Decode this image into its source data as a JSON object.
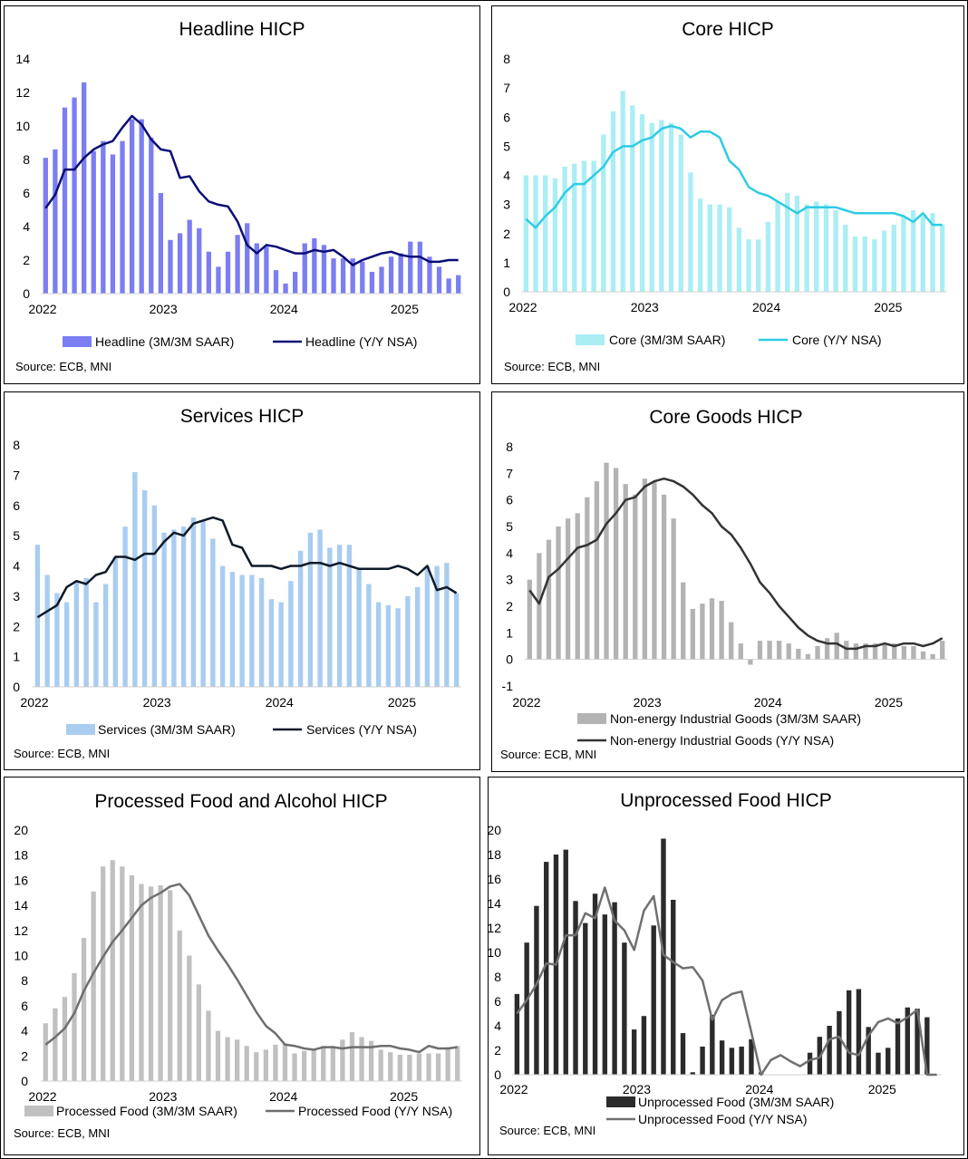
{
  "chart_data": [
    {
      "id": "headline",
      "type": "bar+line",
      "title": "Headline HICP",
      "bar_color": "#7b7ef0",
      "line_color": "#0a0d78",
      "ylim": [
        0,
        14
      ],
      "yticks": [
        0,
        2,
        4,
        6,
        8,
        10,
        12,
        14
      ],
      "ytick_labels": [
        "0",
        "2",
        "4",
        "6",
        "8",
        "10",
        "12",
        "14"
      ],
      "x_range": [
        2022.0,
        2025.5
      ],
      "xticks": [
        2022,
        2023,
        2024,
        2025
      ],
      "xtick_labels": [
        "2022",
        "2023",
        "2024",
        "2025"
      ],
      "bar_series_name": "Headline (3M/3M SAAR)",
      "line_series_name": "Headline (Y/Y NSA)",
      "bars": [
        8.1,
        8.6,
        11.1,
        11.7,
        12.6,
        8.5,
        9.1,
        8.3,
        9.1,
        10.4,
        10.4,
        9.3,
        6.0,
        3.2,
        3.6,
        4.4,
        3.9,
        2.5,
        1.6,
        2.5,
        3.5,
        4.2,
        3.0,
        2.8,
        1.4,
        0.6,
        1.3,
        3.0,
        3.3,
        2.9,
        2.1,
        2.1,
        2.1,
        1.9,
        1.3,
        1.6,
        2.2,
        2.4,
        3.1,
        3.1,
        2.2,
        1.6,
        0.9,
        1.1
      ],
      "line": [
        5.1,
        5.9,
        7.4,
        7.4,
        8.1,
        8.6,
        8.9,
        9.1,
        9.9,
        10.6,
        10.1,
        9.2,
        8.6,
        8.5,
        6.9,
        7.0,
        6.1,
        5.5,
        5.3,
        5.2,
        4.3,
        2.9,
        2.4,
        2.9,
        2.8,
        2.6,
        2.4,
        2.4,
        2.6,
        2.5,
        2.6,
        2.2,
        1.7,
        2.0,
        2.2,
        2.4,
        2.5,
        2.3,
        2.2,
        2.2,
        1.9,
        1.9,
        2.0,
        2.0
      ],
      "source": "Source: ECB, MNI"
    },
    {
      "id": "core",
      "type": "bar+line",
      "title": "Core HICP",
      "bar_color": "#aaeef4",
      "line_color": "#2ecbe6",
      "ylim": [
        0,
        8
      ],
      "yticks": [
        0,
        1,
        2,
        3,
        4,
        5,
        6,
        7,
        8
      ],
      "ytick_labels": [
        "0",
        "1",
        "2",
        "3",
        "4",
        "5",
        "6",
        "7",
        "8"
      ],
      "x_range": [
        2022.0,
        2025.5
      ],
      "xticks": [
        2022,
        2023,
        2024,
        2025
      ],
      "xtick_labels": [
        "2022",
        "2023",
        "2024",
        "2025"
      ],
      "bar_series_name": "Core (3M/3M SAAR)",
      "line_series_name": "Core (Y/Y NSA)",
      "bars": [
        4.0,
        4.0,
        4.0,
        3.9,
        4.3,
        4.4,
        4.5,
        4.5,
        5.4,
        6.2,
        6.9,
        6.4,
        6.1,
        5.8,
        5.9,
        5.8,
        5.4,
        4.1,
        3.2,
        3.0,
        3.0,
        2.9,
        2.2,
        1.8,
        1.8,
        2.4,
        3.1,
        3.4,
        3.3,
        3.0,
        3.1,
        3.0,
        2.8,
        2.3,
        1.9,
        1.9,
        1.8,
        2.1,
        2.3,
        2.6,
        2.8,
        2.6,
        2.7,
        2.3
      ],
      "line": [
        2.5,
        2.2,
        2.6,
        2.9,
        3.4,
        3.7,
        3.7,
        4.0,
        4.3,
        4.8,
        5.0,
        5.0,
        5.2,
        5.3,
        5.6,
        5.7,
        5.6,
        5.3,
        5.5,
        5.5,
        5.3,
        4.5,
        4.2,
        3.6,
        3.4,
        3.3,
        3.1,
        2.9,
        2.7,
        2.9,
        2.9,
        2.9,
        2.9,
        2.8,
        2.7,
        2.7,
        2.7,
        2.7,
        2.7,
        2.6,
        2.4,
        2.7,
        2.3,
        2.3
      ],
      "source": "Source: ECB, MNI"
    },
    {
      "id": "services",
      "type": "bar+line",
      "title": "Services HICP",
      "bar_color": "#a9cdf0",
      "line_color": "#0e1a2a",
      "ylim": [
        0,
        8
      ],
      "yticks": [
        0,
        1,
        2,
        3,
        4,
        5,
        6,
        7,
        8
      ],
      "ytick_labels": [
        "0",
        "1",
        "2",
        "3",
        "4",
        "5",
        "6",
        "7",
        "8"
      ],
      "x_range": [
        2022.0,
        2025.5
      ],
      "xticks": [
        2022,
        2023,
        2024,
        2025
      ],
      "xtick_labels": [
        "2022",
        "2023",
        "2024",
        "2025"
      ],
      "bar_series_name": "Services (3M/3M SAAR)",
      "line_series_name": "Services (Y/Y NSA)",
      "bars": [
        4.7,
        3.7,
        3.1,
        2.8,
        3.5,
        3.6,
        2.8,
        3.4,
        4.3,
        5.3,
        7.1,
        6.5,
        6.0,
        5.1,
        5.2,
        5.3,
        5.6,
        5.5,
        4.9,
        4.0,
        3.8,
        3.7,
        3.7,
        3.6,
        2.9,
        2.8,
        3.5,
        4.5,
        5.1,
        5.2,
        4.6,
        4.7,
        4.7,
        3.9,
        3.4,
        2.8,
        2.7,
        2.6,
        3.0,
        3.3,
        4.0,
        4.0,
        4.1,
        3.1
      ],
      "line": [
        2.3,
        2.5,
        2.7,
        3.3,
        3.5,
        3.4,
        3.7,
        3.8,
        4.3,
        4.3,
        4.2,
        4.4,
        4.4,
        4.8,
        5.1,
        5.0,
        5.4,
        5.5,
        5.6,
        5.5,
        4.7,
        4.6,
        4.0,
        4.0,
        4.0,
        3.9,
        4.0,
        4.0,
        4.1,
        4.1,
        4.0,
        4.1,
        4.0,
        3.9,
        3.9,
        3.9,
        3.9,
        4.0,
        3.9,
        3.7,
        4.0,
        3.2,
        3.3,
        3.1
      ],
      "source": "Source: ECB, MNI"
    },
    {
      "id": "coregoods",
      "type": "bar+line",
      "title": "Core Goods HICP",
      "bar_color": "#b3b3b3",
      "line_color": "#333333",
      "ylim": [
        -1,
        8
      ],
      "yticks": [
        -1,
        0,
        1,
        2,
        3,
        4,
        5,
        6,
        7,
        8
      ],
      "ytick_labels": [
        "-1",
        "0",
        "1",
        "2",
        "3",
        "4",
        "5",
        "6",
        "7",
        "8"
      ],
      "x_range": [
        2022.0,
        2025.5
      ],
      "xticks": [
        2022,
        2023,
        2024,
        2025
      ],
      "xtick_labels": [
        "2022",
        "2023",
        "2024",
        "2025"
      ],
      "bar_series_name": "Non-energy Industrial Goods (3M/3M SAAR)",
      "line_series_name": "Non-energy Industrial Goods (Y/Y NSA)",
      "bars": [
        3.0,
        4.0,
        4.5,
        5.0,
        5.3,
        5.5,
        6.1,
        6.7,
        7.4,
        7.2,
        6.6,
        6.2,
        6.8,
        6.7,
        6.2,
        5.3,
        2.9,
        1.9,
        2.1,
        2.3,
        2.2,
        1.4,
        0.6,
        -0.2,
        0.7,
        0.7,
        0.7,
        0.6,
        0.4,
        0.2,
        0.5,
        0.8,
        1.0,
        0.7,
        0.6,
        0.6,
        0.6,
        0.6,
        0.6,
        0.5,
        0.5,
        0.3,
        0.2,
        0.7
      ],
      "line": [
        2.6,
        2.1,
        3.1,
        3.4,
        3.8,
        4.2,
        4.3,
        4.5,
        5.1,
        5.5,
        6.0,
        6.1,
        6.5,
        6.7,
        6.8,
        6.7,
        6.5,
        6.2,
        5.8,
        5.5,
        5.0,
        4.7,
        4.2,
        3.6,
        2.9,
        2.5,
        2.0,
        1.6,
        1.2,
        0.9,
        0.7,
        0.6,
        0.6,
        0.4,
        0.4,
        0.5,
        0.5,
        0.6,
        0.5,
        0.6,
        0.6,
        0.5,
        0.6,
        0.8
      ],
      "source": "Source: ECB, MNI"
    },
    {
      "id": "processed",
      "type": "bar+line",
      "title": "Processed Food and Alcohol HICP",
      "bar_color": "#c0c0c0",
      "line_color": "#6e6e6e",
      "ylim": [
        0,
        20
      ],
      "yticks": [
        0,
        2,
        4,
        6,
        8,
        10,
        12,
        14,
        16,
        18,
        20
      ],
      "ytick_labels": [
        "0",
        "2",
        "4",
        "6",
        "8",
        "10",
        "12",
        "14",
        "16",
        "18",
        "20"
      ],
      "x_range": [
        2022.0,
        2025.5
      ],
      "xticks": [
        2022,
        2023,
        2024,
        2025
      ],
      "xtick_labels": [
        "2022",
        "2023",
        "2024",
        "2025"
      ],
      "bar_series_name": "Processed Food (3M/3M SAAR)",
      "line_series_name": "Processed Food (Y/Y NSA)",
      "bars": [
        4.6,
        5.8,
        6.7,
        8.6,
        11.4,
        15.1,
        17.1,
        17.6,
        17.1,
        16.4,
        15.7,
        15.5,
        15.6,
        15.2,
        12.0,
        10.0,
        7.7,
        5.6,
        4.0,
        3.5,
        3.3,
        2.8,
        2.3,
        2.5,
        2.9,
        3.0,
        2.2,
        2.4,
        2.5,
        2.8,
        2.8,
        3.3,
        3.9,
        3.5,
        3.2,
        2.5,
        2.3,
        2.1,
        2.1,
        2.2,
        2.2,
        2.2,
        2.7,
        2.8
      ],
      "line": [
        2.9,
        3.5,
        4.2,
        5.4,
        7.2,
        8.6,
        9.9,
        11.1,
        12.0,
        13.0,
        14.0,
        14.6,
        15.0,
        15.5,
        15.7,
        14.8,
        13.2,
        11.6,
        10.4,
        9.3,
        8.1,
        6.8,
        5.5,
        4.4,
        3.8,
        2.9,
        2.8,
        2.6,
        2.5,
        2.7,
        2.7,
        2.6,
        2.7,
        2.7,
        2.7,
        2.8,
        2.8,
        2.6,
        2.5,
        2.3,
        2.8,
        2.6,
        2.6,
        2.7
      ],
      "source": "Source: ECB, MNI"
    },
    {
      "id": "unprocessed",
      "type": "bar+line",
      "title": "Unprocessed Food HICP",
      "bar_color": "#2b2b2b",
      "line_color": "#707070",
      "ylim": [
        0,
        20
      ],
      "yticks": [
        0,
        2,
        4,
        6,
        8,
        10,
        12,
        14,
        16,
        18,
        20
      ],
      "ytick_labels": [
        "0",
        "2",
        "4",
        "6",
        "8",
        "10",
        "12",
        "14",
        "16",
        "18",
        "20"
      ],
      "x_range": [
        2022.0,
        2025.5
      ],
      "xticks": [
        2022,
        2023,
        2024,
        2025
      ],
      "xtick_labels": [
        "2022",
        "2023",
        "2024",
        "2025"
      ],
      "bar_series_name": "Unprocessed Food (3M/3M SAAR)",
      "line_series_name": "Unprocessed Food (Y/Y NSA)",
      "bars": [
        6.6,
        10.8,
        13.8,
        17.4,
        18.0,
        18.4,
        14.2,
        12.4,
        14.8,
        13.1,
        14.1,
        10.8,
        3.7,
        4.8,
        12.2,
        19.3,
        14.3,
        3.4,
        0.2,
        2.3,
        4.9,
        2.8,
        2.2,
        2.3,
        2.9,
        0.2,
        0.0,
        0.0,
        0.0,
        0.0,
        1.8,
        3.1,
        4.0,
        5.2,
        6.9,
        7.0,
        3.9,
        1.8,
        2.2,
        4.6,
        5.5,
        5.4,
        4.7,
        0.0
      ],
      "line": [
        5.0,
        6.1,
        7.4,
        9.1,
        9.0,
        11.4,
        11.4,
        13.2,
        12.8,
        15.3,
        12.6,
        11.8,
        10.2,
        13.4,
        14.6,
        9.8,
        9.2,
        8.7,
        8.8,
        7.7,
        4.5,
        6.1,
        6.6,
        6.8,
        3.5,
        0.0,
        1.2,
        1.6,
        1.1,
        0.7,
        1.2,
        1.4,
        2.9,
        3.1,
        1.8,
        1.6,
        3.2,
        4.3,
        4.6,
        4.2,
        4.7,
        5.3,
        0.0,
        0.0
      ],
      "source": "Source: ECB, MNI"
    }
  ]
}
